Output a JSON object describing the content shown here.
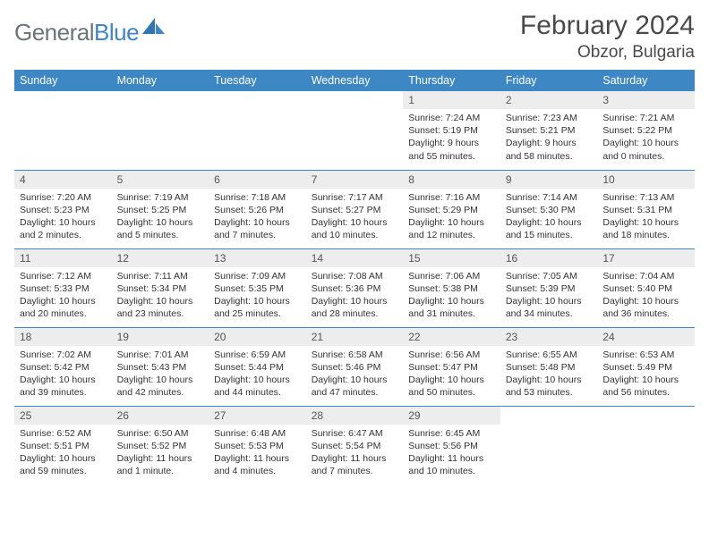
{
  "logo": {
    "text_general": "General",
    "text_blue": "Blue"
  },
  "colors": {
    "header_bg": "#3d87c4",
    "header_fg": "#ffffff",
    "daynum_bg": "#ededed",
    "border": "#3d87c4",
    "logo_gray": "#6b7478",
    "logo_blue": "#3d87c4",
    "text": "#4a4a4a"
  },
  "title": "February 2024",
  "location": "Obzor, Bulgaria",
  "weekdays": [
    "Sunday",
    "Monday",
    "Tuesday",
    "Wednesday",
    "Thursday",
    "Friday",
    "Saturday"
  ],
  "weeks": [
    [
      null,
      null,
      null,
      null,
      {
        "num": "1",
        "sunrise": "Sunrise: 7:24 AM",
        "sunset": "Sunset: 5:19 PM",
        "daylight": "Daylight: 9 hours and 55 minutes."
      },
      {
        "num": "2",
        "sunrise": "Sunrise: 7:23 AM",
        "sunset": "Sunset: 5:21 PM",
        "daylight": "Daylight: 9 hours and 58 minutes."
      },
      {
        "num": "3",
        "sunrise": "Sunrise: 7:21 AM",
        "sunset": "Sunset: 5:22 PM",
        "daylight": "Daylight: 10 hours and 0 minutes."
      }
    ],
    [
      {
        "num": "4",
        "sunrise": "Sunrise: 7:20 AM",
        "sunset": "Sunset: 5:23 PM",
        "daylight": "Daylight: 10 hours and 2 minutes."
      },
      {
        "num": "5",
        "sunrise": "Sunrise: 7:19 AM",
        "sunset": "Sunset: 5:25 PM",
        "daylight": "Daylight: 10 hours and 5 minutes."
      },
      {
        "num": "6",
        "sunrise": "Sunrise: 7:18 AM",
        "sunset": "Sunset: 5:26 PM",
        "daylight": "Daylight: 10 hours and 7 minutes."
      },
      {
        "num": "7",
        "sunrise": "Sunrise: 7:17 AM",
        "sunset": "Sunset: 5:27 PM",
        "daylight": "Daylight: 10 hours and 10 minutes."
      },
      {
        "num": "8",
        "sunrise": "Sunrise: 7:16 AM",
        "sunset": "Sunset: 5:29 PM",
        "daylight": "Daylight: 10 hours and 12 minutes."
      },
      {
        "num": "9",
        "sunrise": "Sunrise: 7:14 AM",
        "sunset": "Sunset: 5:30 PM",
        "daylight": "Daylight: 10 hours and 15 minutes."
      },
      {
        "num": "10",
        "sunrise": "Sunrise: 7:13 AM",
        "sunset": "Sunset: 5:31 PM",
        "daylight": "Daylight: 10 hours and 18 minutes."
      }
    ],
    [
      {
        "num": "11",
        "sunrise": "Sunrise: 7:12 AM",
        "sunset": "Sunset: 5:33 PM",
        "daylight": "Daylight: 10 hours and 20 minutes."
      },
      {
        "num": "12",
        "sunrise": "Sunrise: 7:11 AM",
        "sunset": "Sunset: 5:34 PM",
        "daylight": "Daylight: 10 hours and 23 minutes."
      },
      {
        "num": "13",
        "sunrise": "Sunrise: 7:09 AM",
        "sunset": "Sunset: 5:35 PM",
        "daylight": "Daylight: 10 hours and 25 minutes."
      },
      {
        "num": "14",
        "sunrise": "Sunrise: 7:08 AM",
        "sunset": "Sunset: 5:36 PM",
        "daylight": "Daylight: 10 hours and 28 minutes."
      },
      {
        "num": "15",
        "sunrise": "Sunrise: 7:06 AM",
        "sunset": "Sunset: 5:38 PM",
        "daylight": "Daylight: 10 hours and 31 minutes."
      },
      {
        "num": "16",
        "sunrise": "Sunrise: 7:05 AM",
        "sunset": "Sunset: 5:39 PM",
        "daylight": "Daylight: 10 hours and 34 minutes."
      },
      {
        "num": "17",
        "sunrise": "Sunrise: 7:04 AM",
        "sunset": "Sunset: 5:40 PM",
        "daylight": "Daylight: 10 hours and 36 minutes."
      }
    ],
    [
      {
        "num": "18",
        "sunrise": "Sunrise: 7:02 AM",
        "sunset": "Sunset: 5:42 PM",
        "daylight": "Daylight: 10 hours and 39 minutes."
      },
      {
        "num": "19",
        "sunrise": "Sunrise: 7:01 AM",
        "sunset": "Sunset: 5:43 PM",
        "daylight": "Daylight: 10 hours and 42 minutes."
      },
      {
        "num": "20",
        "sunrise": "Sunrise: 6:59 AM",
        "sunset": "Sunset: 5:44 PM",
        "daylight": "Daylight: 10 hours and 44 minutes."
      },
      {
        "num": "21",
        "sunrise": "Sunrise: 6:58 AM",
        "sunset": "Sunset: 5:46 PM",
        "daylight": "Daylight: 10 hours and 47 minutes."
      },
      {
        "num": "22",
        "sunrise": "Sunrise: 6:56 AM",
        "sunset": "Sunset: 5:47 PM",
        "daylight": "Daylight: 10 hours and 50 minutes."
      },
      {
        "num": "23",
        "sunrise": "Sunrise: 6:55 AM",
        "sunset": "Sunset: 5:48 PM",
        "daylight": "Daylight: 10 hours and 53 minutes."
      },
      {
        "num": "24",
        "sunrise": "Sunrise: 6:53 AM",
        "sunset": "Sunset: 5:49 PM",
        "daylight": "Daylight: 10 hours and 56 minutes."
      }
    ],
    [
      {
        "num": "25",
        "sunrise": "Sunrise: 6:52 AM",
        "sunset": "Sunset: 5:51 PM",
        "daylight": "Daylight: 10 hours and 59 minutes."
      },
      {
        "num": "26",
        "sunrise": "Sunrise: 6:50 AM",
        "sunset": "Sunset: 5:52 PM",
        "daylight": "Daylight: 11 hours and 1 minute."
      },
      {
        "num": "27",
        "sunrise": "Sunrise: 6:48 AM",
        "sunset": "Sunset: 5:53 PM",
        "daylight": "Daylight: 11 hours and 4 minutes."
      },
      {
        "num": "28",
        "sunrise": "Sunrise: 6:47 AM",
        "sunset": "Sunset: 5:54 PM",
        "daylight": "Daylight: 11 hours and 7 minutes."
      },
      {
        "num": "29",
        "sunrise": "Sunrise: 6:45 AM",
        "sunset": "Sunset: 5:56 PM",
        "daylight": "Daylight: 11 hours and 10 minutes."
      },
      null,
      null
    ]
  ]
}
